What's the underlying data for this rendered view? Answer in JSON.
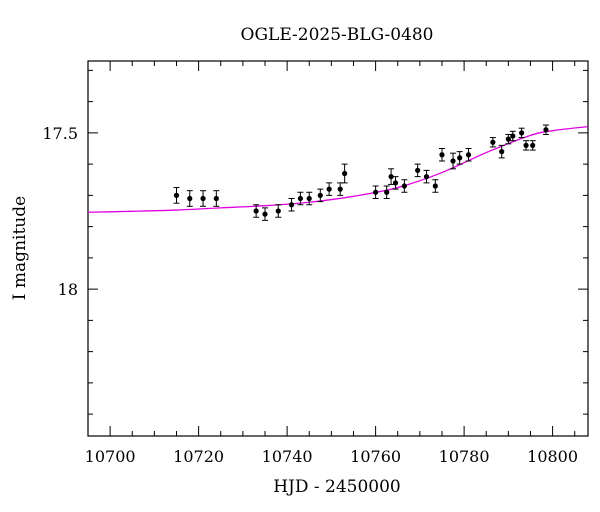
{
  "chart_data": {
    "type": "scatter",
    "title": "OGLE-2025-BLG-0480",
    "xlabel": "HJD - 2450000",
    "ylabel": "I magnitude",
    "xlim": [
      10695,
      10808
    ],
    "ylim": [
      18.47,
      17.27
    ],
    "y_inverted": true,
    "x_ticks": [
      10700,
      10720,
      10740,
      10760,
      10780,
      10800
    ],
    "y_ticks": [
      17.5,
      18
    ],
    "grid": false,
    "legend": "none",
    "colors": {
      "points": "#000000",
      "model": "#e000e0",
      "axes": "#000000"
    },
    "series": [
      {
        "kind": "observations",
        "points": [
          {
            "x": 10715.0,
            "y": 17.7,
            "err": 0.025
          },
          {
            "x": 10718.0,
            "y": 17.71,
            "err": 0.025
          },
          {
            "x": 10721.0,
            "y": 17.71,
            "err": 0.025
          },
          {
            "x": 10724.0,
            "y": 17.71,
            "err": 0.025
          },
          {
            "x": 10733.0,
            "y": 17.75,
            "err": 0.02
          },
          {
            "x": 10735.0,
            "y": 17.76,
            "err": 0.02
          },
          {
            "x": 10738.0,
            "y": 17.75,
            "err": 0.02
          },
          {
            "x": 10741.0,
            "y": 17.73,
            "err": 0.02
          },
          {
            "x": 10743.0,
            "y": 17.71,
            "err": 0.02
          },
          {
            "x": 10745.0,
            "y": 17.71,
            "err": 0.02
          },
          {
            "x": 10747.5,
            "y": 17.7,
            "err": 0.02
          },
          {
            "x": 10749.5,
            "y": 17.68,
            "err": 0.02
          },
          {
            "x": 10752.0,
            "y": 17.68,
            "err": 0.02
          },
          {
            "x": 10753.0,
            "y": 17.63,
            "err": 0.03
          },
          {
            "x": 10760.0,
            "y": 17.69,
            "err": 0.02
          },
          {
            "x": 10762.5,
            "y": 17.69,
            "err": 0.02
          },
          {
            "x": 10763.5,
            "y": 17.64,
            "err": 0.025
          },
          {
            "x": 10764.5,
            "y": 17.66,
            "err": 0.02
          },
          {
            "x": 10766.5,
            "y": 17.67,
            "err": 0.02
          },
          {
            "x": 10769.5,
            "y": 17.62,
            "err": 0.02
          },
          {
            "x": 10771.5,
            "y": 17.64,
            "err": 0.02
          },
          {
            "x": 10773.5,
            "y": 17.67,
            "err": 0.02
          },
          {
            "x": 10775.0,
            "y": 17.57,
            "err": 0.02
          },
          {
            "x": 10777.5,
            "y": 17.59,
            "err": 0.025
          },
          {
            "x": 10779.0,
            "y": 17.58,
            "err": 0.02
          },
          {
            "x": 10781.0,
            "y": 17.57,
            "err": 0.02
          },
          {
            "x": 10786.5,
            "y": 17.53,
            "err": 0.015
          },
          {
            "x": 10788.5,
            "y": 17.56,
            "err": 0.02
          },
          {
            "x": 10790.0,
            "y": 17.52,
            "err": 0.015
          },
          {
            "x": 10791.0,
            "y": 17.51,
            "err": 0.015
          },
          {
            "x": 10793.0,
            "y": 17.5,
            "err": 0.015
          },
          {
            "x": 10794.0,
            "y": 17.54,
            "err": 0.015
          },
          {
            "x": 10795.5,
            "y": 17.54,
            "err": 0.015
          },
          {
            "x": 10798.5,
            "y": 17.49,
            "err": 0.015
          }
        ]
      },
      {
        "kind": "model",
        "points": [
          {
            "x": 10695,
            "y": 17.754
          },
          {
            "x": 10705,
            "y": 17.751
          },
          {
            "x": 10715,
            "y": 17.747
          },
          {
            "x": 10725,
            "y": 17.74
          },
          {
            "x": 10735,
            "y": 17.733
          },
          {
            "x": 10745,
            "y": 17.722
          },
          {
            "x": 10755,
            "y": 17.703
          },
          {
            "x": 10765,
            "y": 17.675
          },
          {
            "x": 10775,
            "y": 17.627
          },
          {
            "x": 10785,
            "y": 17.563
          },
          {
            "x": 10795,
            "y": 17.508
          },
          {
            "x": 10800,
            "y": 17.493
          },
          {
            "x": 10808,
            "y": 17.48
          }
        ]
      }
    ]
  }
}
